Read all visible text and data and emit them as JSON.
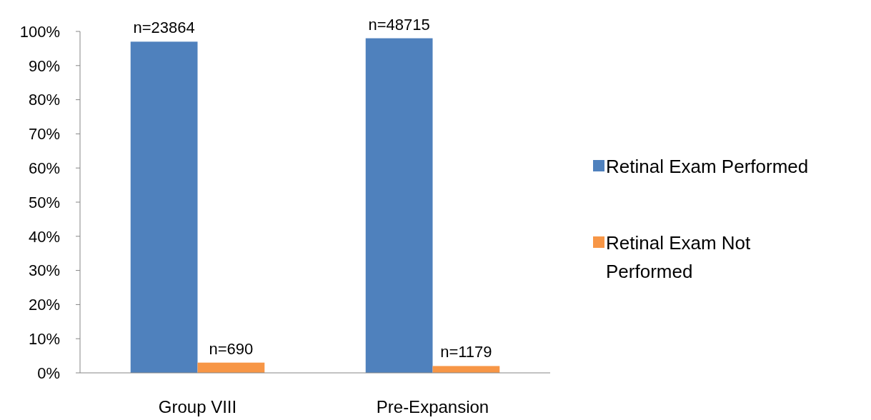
{
  "chart_data": {
    "type": "bar",
    "categories": [
      "Group VIII",
      "Pre-Expansion"
    ],
    "series": [
      {
        "name": "Retinal Exam Performed",
        "color": "#4f81bd",
        "values": [
          97,
          98
        ]
      },
      {
        "name": "Retinal Exam Not Performed",
        "color": "#f79646",
        "values": [
          3,
          2
        ]
      }
    ],
    "annotations": [
      {
        "text": "n=23864",
        "x": "Group VIII",
        "y": 97
      },
      {
        "text": "n=48715",
        "x": "Pre-Expansion",
        "y": 98
      },
      {
        "text": "n=690",
        "x": "Group VIII",
        "y": 3
      },
      {
        "text": "n=1179",
        "x": "Pre-Expansion",
        "y": 2
      }
    ],
    "ylim": [
      0,
      100
    ],
    "yticks": [
      {
        "value": 0,
        "label": "0%"
      },
      {
        "value": 10,
        "label": "10%"
      },
      {
        "value": 20,
        "label": "20%"
      },
      {
        "value": 30,
        "label": "30%"
      },
      {
        "value": 40,
        "label": "40%"
      },
      {
        "value": 50,
        "label": "50%"
      },
      {
        "value": 60,
        "label": "60%"
      },
      {
        "value": 70,
        "label": "70%"
      },
      {
        "value": 80,
        "label": "80%"
      },
      {
        "value": 90,
        "label": "90%"
      },
      {
        "value": 100,
        "label": "100%"
      }
    ],
    "grid": false,
    "legend": "right"
  }
}
